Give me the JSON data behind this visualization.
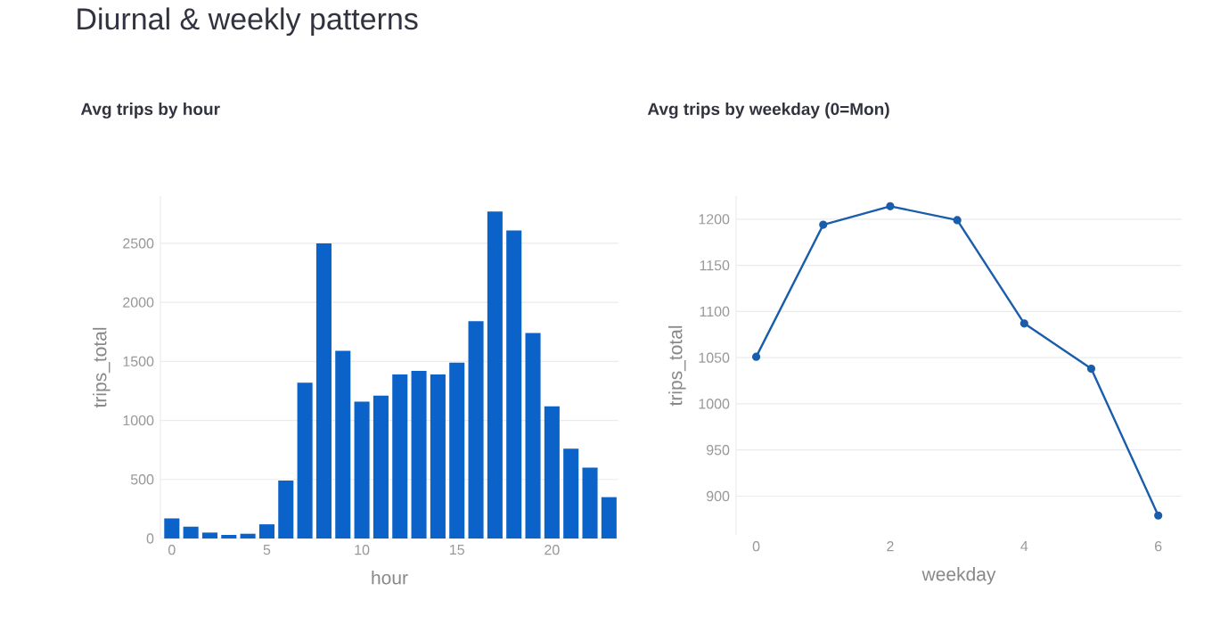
{
  "chart_data": [
    {
      "type": "other",
      "title": "Diurnal & weekly patterns"
    },
    {
      "type": "bar",
      "title": "Avg trips by hour",
      "xlabel": "hour",
      "ylabel": "trips_total",
      "color": "#0b62c9",
      "x": [
        0,
        1,
        2,
        3,
        4,
        5,
        6,
        7,
        8,
        9,
        10,
        11,
        12,
        13,
        14,
        15,
        16,
        17,
        18,
        19,
        20,
        21,
        22,
        23
      ],
      "values": [
        170,
        100,
        50,
        30,
        40,
        120,
        490,
        1320,
        2500,
        1590,
        1160,
        1210,
        1390,
        1420,
        1390,
        1490,
        1840,
        2770,
        2610,
        1740,
        1120,
        760,
        600,
        350
      ],
      "xlim": [
        -0.6,
        23.5
      ],
      "ylim": [
        0,
        2900
      ],
      "xticks": [
        0,
        5,
        10,
        15,
        20
      ],
      "yticks": [
        0,
        500,
        1000,
        1500,
        2000,
        2500
      ],
      "grid": "y"
    },
    {
      "type": "line",
      "title": "Avg trips by weekday (0=Mon)",
      "xlabel": "weekday",
      "ylabel": "trips_total",
      "color": "#1a5dab",
      "x": [
        0,
        1,
        2,
        3,
        4,
        5,
        6
      ],
      "values": [
        1051,
        1194,
        1214,
        1199,
        1087,
        1038,
        879
      ],
      "xlim": [
        -0.3,
        6.35
      ],
      "ylim": [
        858,
        1225
      ],
      "xticks": [
        0,
        2,
        4,
        6
      ],
      "yticks": [
        900,
        950,
        1000,
        1050,
        1100,
        1150,
        1200
      ],
      "grid": "y",
      "marker": "circle",
      "line_style": "solid"
    }
  ]
}
